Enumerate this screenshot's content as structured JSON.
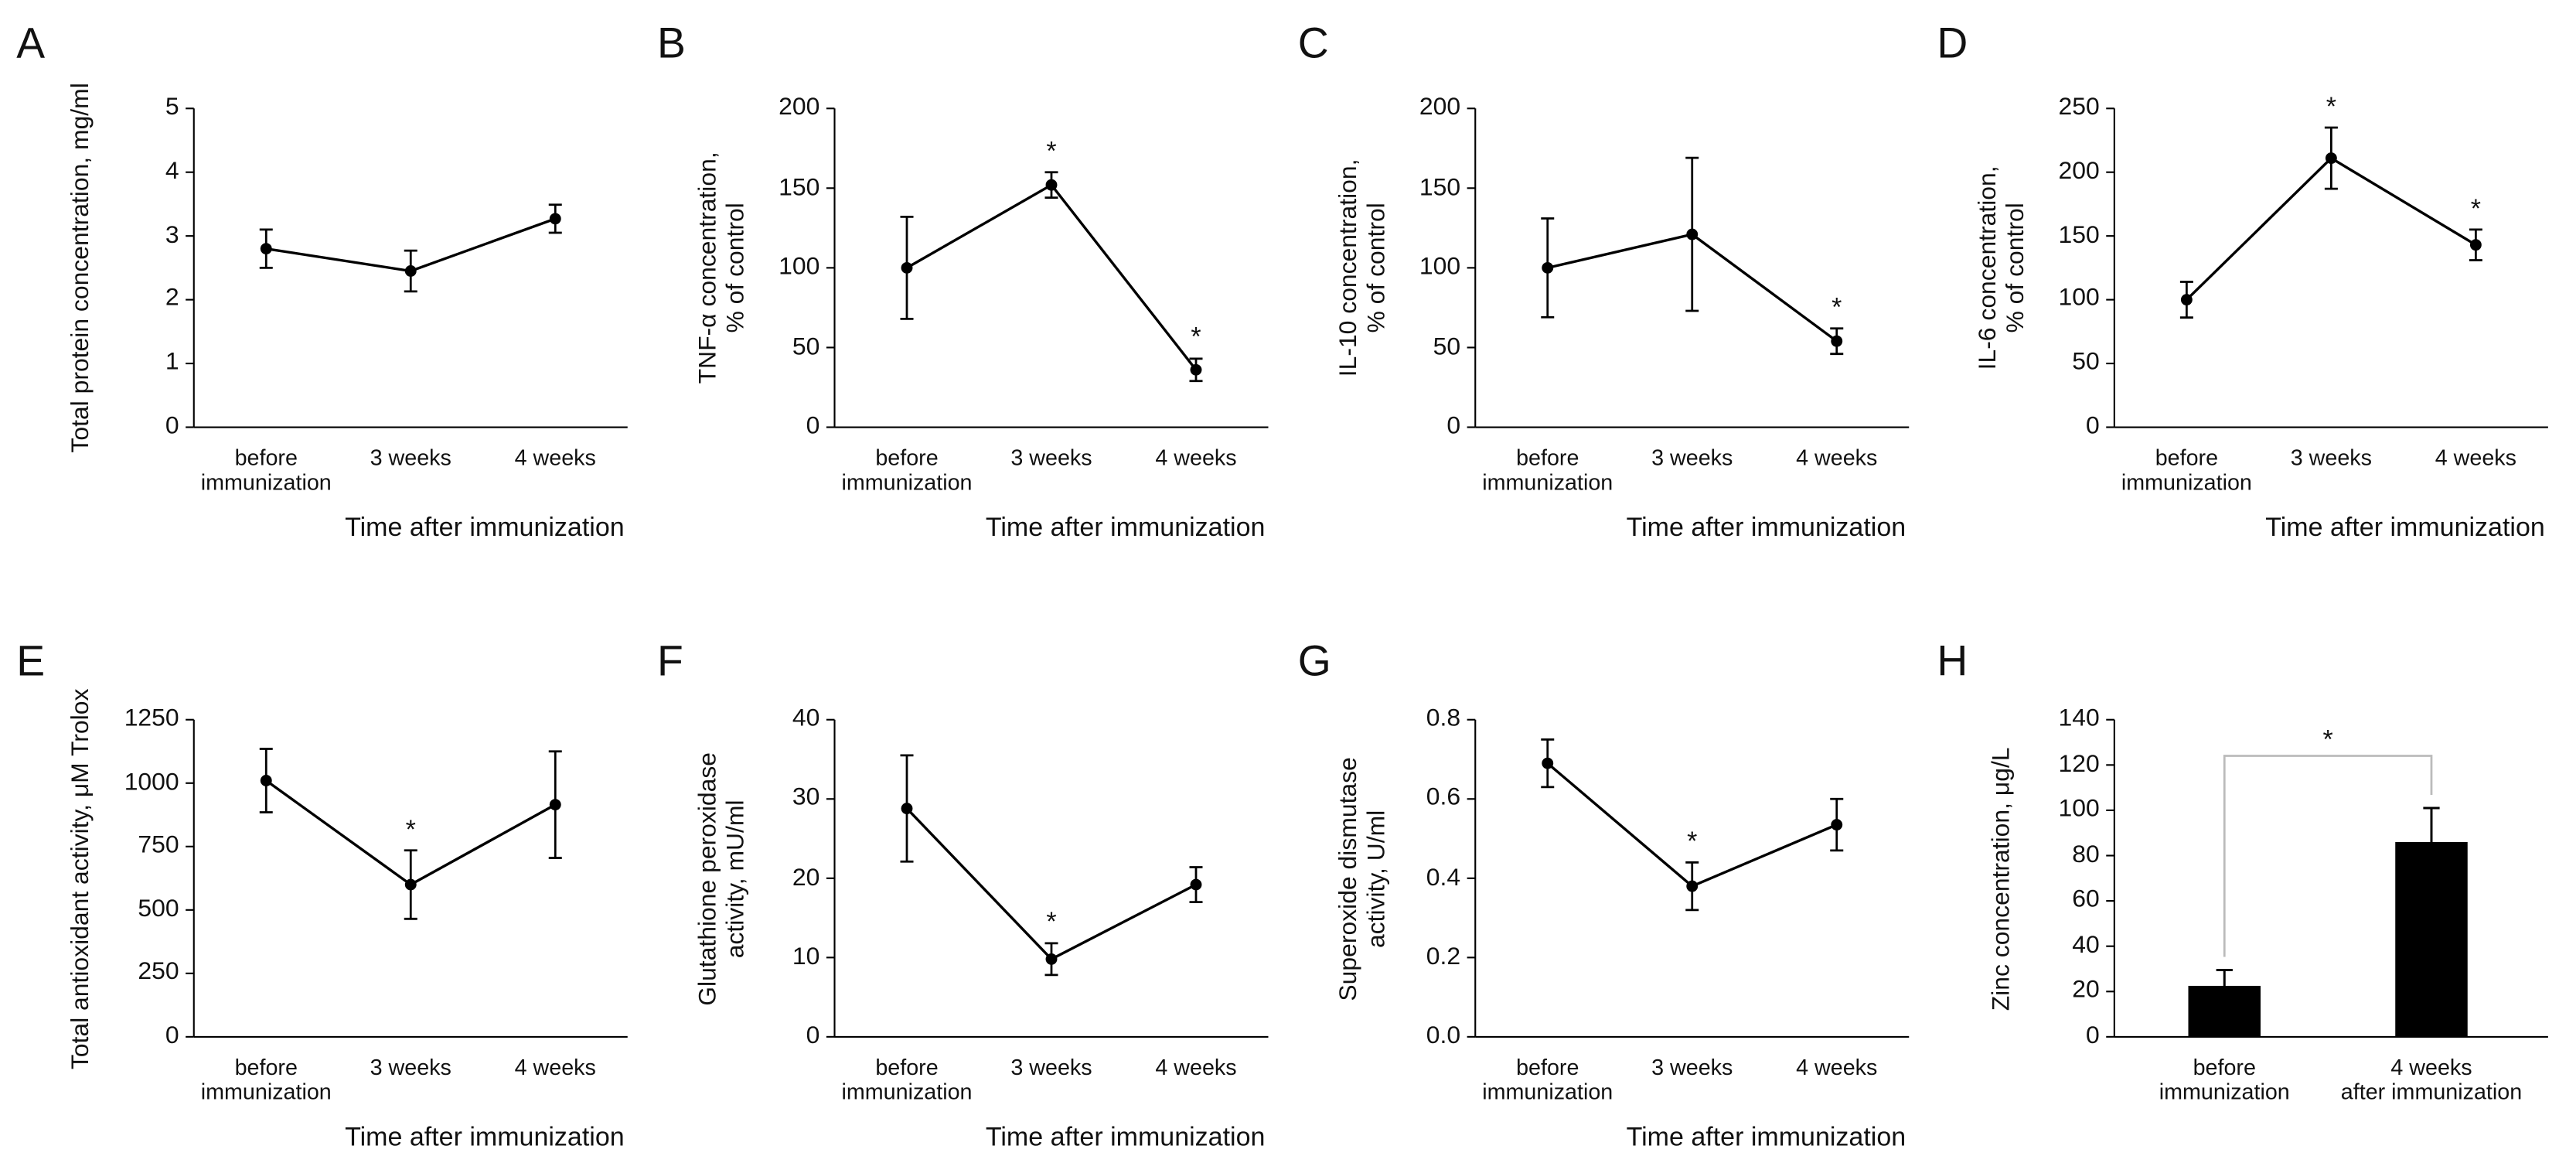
{
  "chart_data": [
    {
      "type": "line",
      "panel": "A",
      "ylabel": "Total protein concentration, mg/ml",
      "xlabel": "Time after immunization",
      "categories": [
        "before\nimmunization",
        "3 weeks",
        "4 weeks"
      ],
      "values": [
        2.8,
        2.45,
        3.27
      ],
      "errors": [
        0.3,
        0.32,
        0.22
      ],
      "significance": [
        null,
        null,
        null
      ],
      "color": "#000000",
      "ylim": [
        0,
        5
      ],
      "yticks": [
        0,
        1,
        2,
        3,
        4,
        5
      ]
    },
    {
      "type": "line",
      "panel": "B",
      "ylabel": "TNF-α concentration,\n% of control",
      "xlabel": "Time after immunization",
      "categories": [
        "before\nimmunization",
        "3 weeks",
        "4 weeks"
      ],
      "values": [
        100,
        152,
        36
      ],
      "errors": [
        32,
        8,
        7
      ],
      "significance": [
        null,
        "*",
        "*"
      ],
      "color": "#000000",
      "ylim": [
        0,
        200
      ],
      "yticks": [
        0,
        50,
        100,
        150,
        200
      ]
    },
    {
      "type": "line",
      "panel": "C",
      "ylabel": "IL-10 concentration,\n% of control",
      "xlabel": "Time after immunization",
      "categories": [
        "before\nimmunization",
        "3 weeks",
        "4 weeks"
      ],
      "values": [
        100,
        121,
        54
      ],
      "errors": [
        31,
        48,
        8
      ],
      "significance": [
        null,
        null,
        "*"
      ],
      "color": "#000000",
      "ylim": [
        0,
        200
      ],
      "yticks": [
        0,
        50,
        100,
        150,
        200
      ]
    },
    {
      "type": "line",
      "panel": "D",
      "ylabel": "IL-6 concentration,\n% of control",
      "xlabel": "Time after immunization",
      "categories": [
        "before\nimmunization",
        "3 weeks",
        "4 weeks"
      ],
      "values": [
        100,
        211,
        143
      ],
      "errors": [
        14,
        24,
        12
      ],
      "significance": [
        null,
        "*",
        "*"
      ],
      "color": "#000000",
      "ylim": [
        0,
        250
      ],
      "yticks": [
        0,
        50,
        100,
        150,
        200,
        250
      ]
    },
    {
      "type": "line",
      "panel": "E",
      "ylabel": "Total antioxidant activity, μM Trolox",
      "xlabel": "Time after immunization",
      "categories": [
        "before\nimmunization",
        "3 weeks",
        "4 weeks"
      ],
      "values": [
        1010,
        600,
        915
      ],
      "errors": [
        125,
        135,
        210
      ],
      "significance": [
        null,
        "*",
        null
      ],
      "color": "#000000",
      "ylim": [
        0,
        1250
      ],
      "yticks": [
        0,
        250,
        500,
        750,
        1000,
        1250
      ]
    },
    {
      "type": "line",
      "panel": "F",
      "ylabel": "Glutathione peroxidase\nactivity, mU/ml",
      "xlabel": "Time after immunization",
      "categories": [
        "before\nimmunization",
        "3 weeks",
        "4 weeks"
      ],
      "values": [
        28.8,
        9.8,
        19.2
      ],
      "errors": [
        6.7,
        2,
        2.2
      ],
      "significance": [
        null,
        "*",
        null
      ],
      "color": "#000000",
      "ylim": [
        0,
        40
      ],
      "yticks": [
        0,
        10,
        20,
        30,
        40
      ]
    },
    {
      "type": "line",
      "panel": "G",
      "ylabel": "Superoxide dismutase\nactivity, U/ml",
      "xlabel": "Time after immunization",
      "categories": [
        "before\nimmunization",
        "3 weeks",
        "4 weeks"
      ],
      "values": [
        0.69,
        0.38,
        0.535
      ],
      "errors": [
        0.06,
        0.06,
        0.065
      ],
      "significance": [
        null,
        "*",
        null
      ],
      "color": "#000000",
      "ylim": [
        0,
        0.8
      ],
      "yticks": [
        {
          "value": 0,
          "label": "0.0"
        },
        0.2,
        0.4,
        0.6,
        0.8
      ]
    },
    {
      "type": "bar",
      "panel": "H",
      "ylabel": "Zinc concentration, μg/L",
      "categories": [
        "before\nimmunization",
        "4 weeks\nafter immunization"
      ],
      "values": [
        22.5,
        86
      ],
      "errors": [
        7,
        15
      ],
      "significance": "*",
      "color": "#000000",
      "ylim": [
        0,
        140
      ],
      "yticks": [
        0,
        20,
        40,
        60,
        80,
        100,
        120,
        140
      ]
    }
  ]
}
